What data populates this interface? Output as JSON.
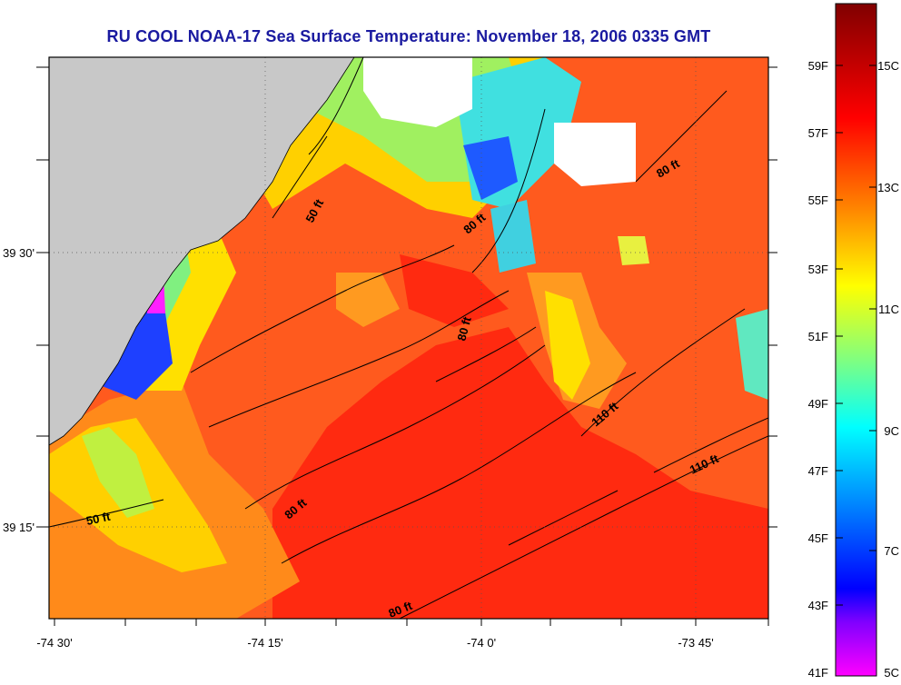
{
  "title": "RU COOL  NOAA-17  Sea Surface Temperature:  November 18, 2006 0335 GMT",
  "map": {
    "x_ticks": [
      "-74 30'",
      "-74 15'",
      "-74 0'",
      "-73 45'"
    ],
    "y_ticks": [
      "39 30'",
      "39 15'"
    ],
    "contour_labels": [
      "50 ft",
      "80 ft",
      "80 ft",
      "80 ft",
      "110 ft",
      "110 ft",
      "50 ft",
      "80 ft",
      "80 ft"
    ]
  },
  "colorbar": {
    "fahrenheit": [
      "59F",
      "57F",
      "55F",
      "53F",
      "51F",
      "49F",
      "47F",
      "45F",
      "43F",
      "41F"
    ],
    "celsius": [
      "15C",
      "13C",
      "11C",
      "9C",
      "7C",
      "5C"
    ],
    "colors": [
      "#ff00ff",
      "#8000ff",
      "#0000ff",
      "#0080ff",
      "#00ffff",
      "#80ff80",
      "#ffff00",
      "#ff8000",
      "#ff0000",
      "#800000"
    ]
  },
  "colors": {
    "land": "#c8c8c8",
    "cloud": "#ffffff",
    "sst_dominant": "#ff5a1e",
    "sst_warm": "#ff2a10",
    "title": "#1a1aa0"
  }
}
